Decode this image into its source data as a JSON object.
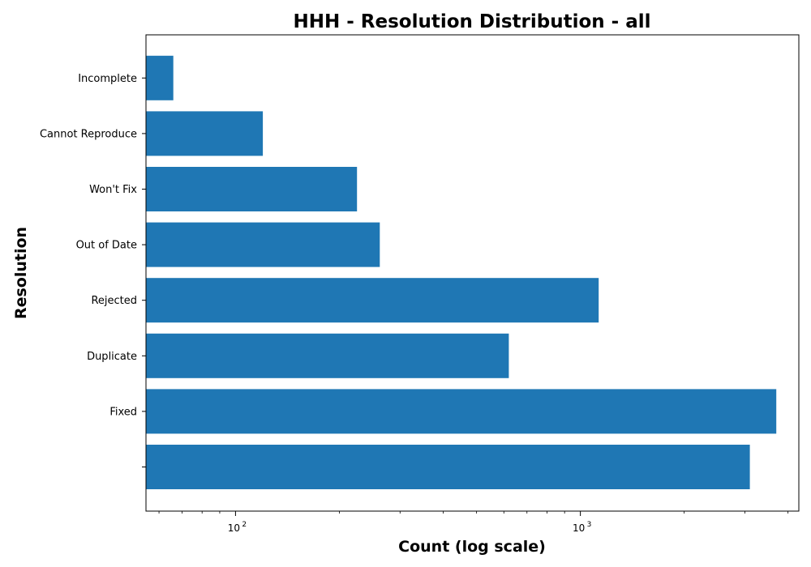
{
  "chart_data": {
    "type": "bar",
    "orientation": "horizontal",
    "title": "HHH - Resolution Distribution - all",
    "xlabel": "Count (log scale)",
    "ylabel": "Resolution",
    "x_scale": "log",
    "xlim": [
      55,
      4300
    ],
    "x_major_ticks": [
      {
        "value": 100,
        "base": "10",
        "exp": "2"
      },
      {
        "value": 1000,
        "base": "10",
        "exp": "3"
      }
    ],
    "categories": [
      "Incomplete",
      "Cannot Reproduce",
      "Won't Fix",
      "Out of Date",
      "Rejected",
      "Duplicate",
      "Fixed",
      ""
    ],
    "values": [
      66,
      120,
      225,
      262,
      1130,
      620,
      3700,
      3100
    ],
    "bar_color": "#1f77b4",
    "grid": false,
    "legend": "none"
  }
}
